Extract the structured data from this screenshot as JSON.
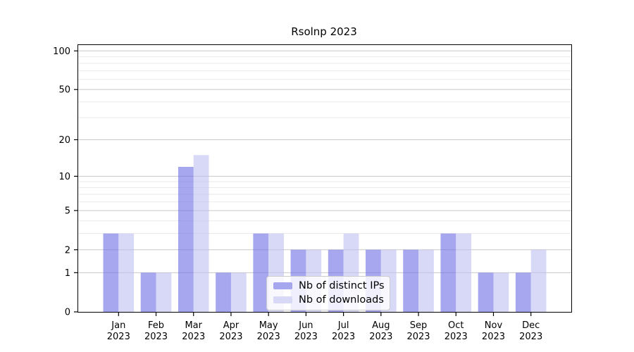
{
  "chart_data": {
    "type": "bar",
    "title": "Rsolnp 2023",
    "categories": [
      "Jan",
      "Feb",
      "Mar",
      "Apr",
      "May",
      "Jun",
      "Jul",
      "Aug",
      "Sep",
      "Oct",
      "Nov",
      "Dec"
    ],
    "category_year": "2023",
    "series": [
      {
        "name": "Nb of distinct IPs",
        "color": "#7171e6",
        "swatch_color": "#a7a7f0",
        "values": [
          3,
          1,
          12,
          1,
          3,
          2,
          2,
          2,
          2,
          3,
          1,
          1
        ]
      },
      {
        "name": "Nb of downloads",
        "color": "#c0c0f2",
        "swatch_color": "#d8d8f7",
        "values": [
          3,
          1,
          15,
          1,
          3,
          2,
          3,
          2,
          2,
          3,
          1,
          2
        ]
      }
    ],
    "bar_opacity": 0.62,
    "yscale": "log1p",
    "ylim": [
      0,
      111
    ],
    "yticks": [
      0,
      1,
      2,
      5,
      10,
      20,
      50,
      100
    ],
    "minor_gridlines": [
      3,
      4,
      6,
      7,
      8,
      9,
      30,
      40,
      60,
      70,
      80,
      90
    ],
    "grid": "horizontal-on",
    "xlabel": "",
    "ylabel": "",
    "legend_position": "lower center"
  },
  "colors": {
    "major_grid": "#c8c8c8",
    "minor_grid": "#eaeaea",
    "spine": "#000000",
    "tick_text": "#000000",
    "background": "#ffffff"
  }
}
